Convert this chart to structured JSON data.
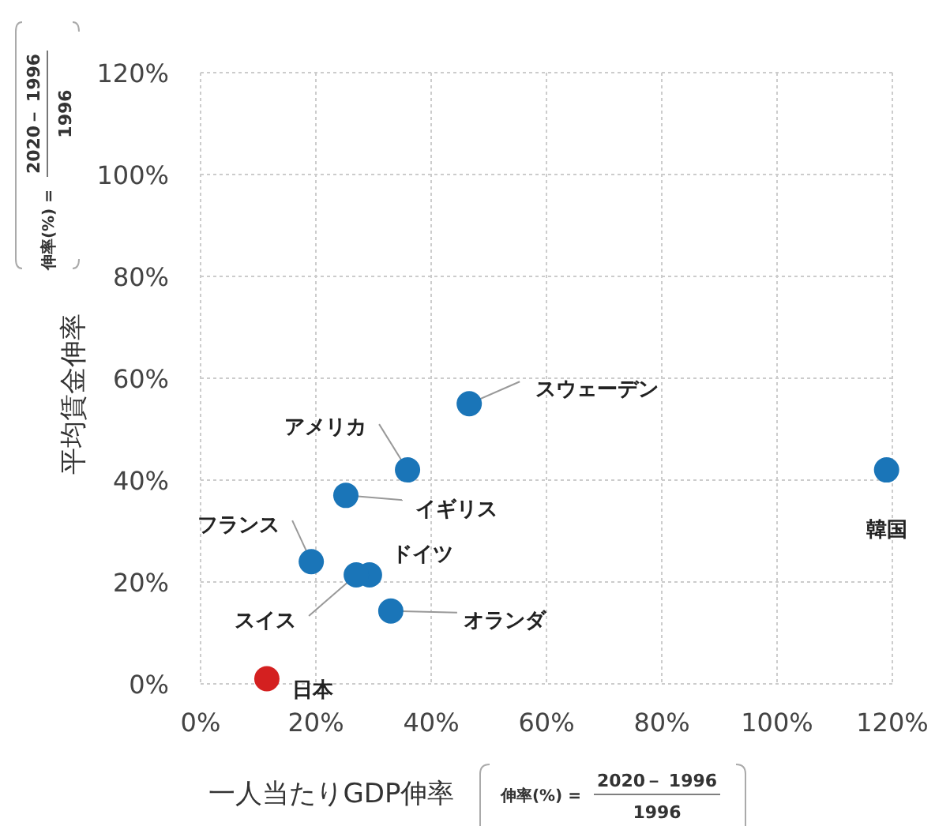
{
  "chart_data": {
    "type": "scatter",
    "xlabel": "一人当たりGDP伸率",
    "ylabel": "平均賃金伸率",
    "xlim": [
      0,
      120
    ],
    "ylim": [
      0,
      120
    ],
    "xticks": [
      {
        "value": 0,
        "label": "0%"
      },
      {
        "value": 20,
        "label": "20%"
      },
      {
        "value": 40,
        "label": "40%"
      },
      {
        "value": 60,
        "label": "60%"
      },
      {
        "value": 80,
        "label": "80%"
      },
      {
        "value": 100,
        "label": "100%"
      },
      {
        "value": 120,
        "label": "120%"
      }
    ],
    "yticks": [
      {
        "value": 0,
        "label": "0%"
      },
      {
        "value": 20,
        "label": "20%"
      },
      {
        "value": 40,
        "label": "40%"
      },
      {
        "value": 60,
        "label": "60%"
      },
      {
        "value": 80,
        "label": "80%"
      },
      {
        "value": 100,
        "label": "100%"
      },
      {
        "value": 120,
        "label": "120%"
      }
    ],
    "grid": true,
    "marker": "circle",
    "series": [
      {
        "color": "#1a75b8",
        "x": [
          46.6,
          35.9,
          25.2,
          19.2,
          29.3,
          27,
          33,
          119
        ],
        "values": [
          55,
          42,
          37,
          24,
          21.4,
          21.4,
          14.3,
          42
        ]
      },
      {
        "color": "#d42020",
        "x": [
          11.5
        ],
        "values": [
          1
        ]
      }
    ],
    "annotations": [
      {
        "text": "スウェーデン",
        "x": 46.6,
        "y": 55
      },
      {
        "text": "アメリカ",
        "x": 35.9,
        "y": 42
      },
      {
        "text": "イギリス",
        "x": 25.2,
        "y": 37
      },
      {
        "text": "フランス",
        "x": 19.2,
        "y": 24
      },
      {
        "text": "ドイツ",
        "x": 29.3,
        "y": 21.4
      },
      {
        "text": "スイス",
        "x": 27,
        "y": 21.4
      },
      {
        "text": "オランダ",
        "x": 33,
        "y": 14.3
      },
      {
        "text": "韓国",
        "x": 119,
        "y": 42
      },
      {
        "text": "日本",
        "x": 11.5,
        "y": 1
      },
      "伸率(%) =",
      "2020－ 1996",
      "1996",
      "伸率(%) =",
      "2020－ 1996",
      "1996"
    ]
  }
}
